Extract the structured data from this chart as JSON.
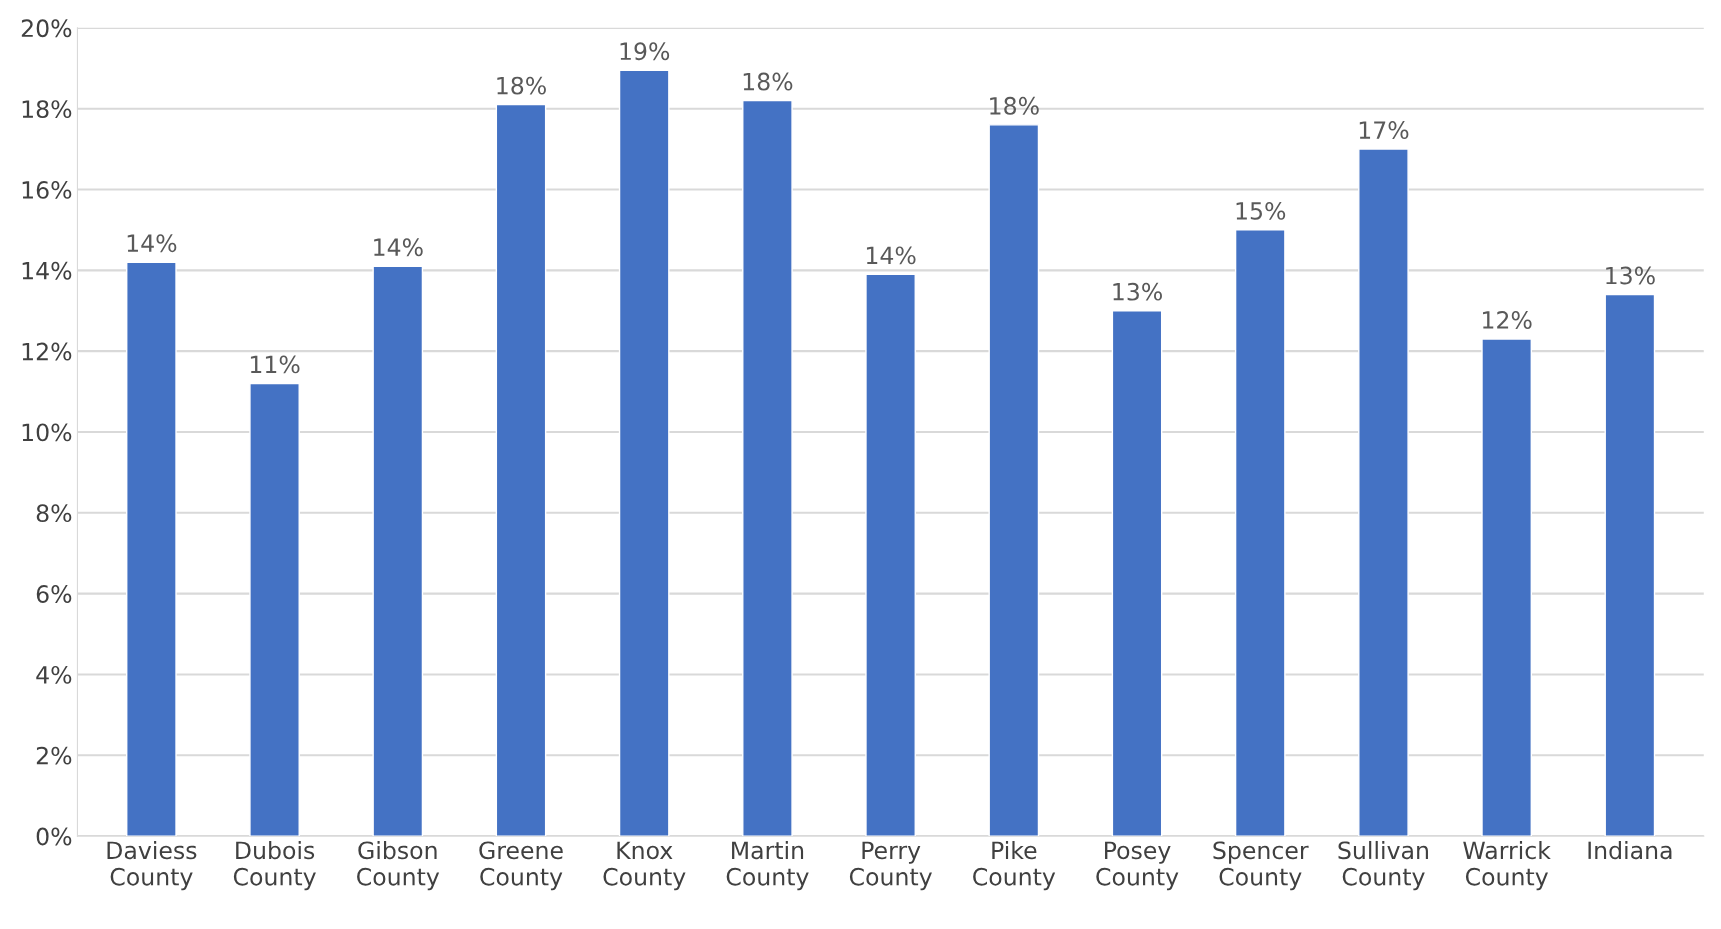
{
  "chart_data": {
    "type": "bar",
    "categories": [
      "Daviess County",
      "Dubois County",
      "Gibson County",
      "Greene County",
      "Knox County",
      "Martin County",
      "Perry County",
      "Pike County",
      "Posey County",
      "Spencer County",
      "Sullivan County",
      "Warrick County",
      "Indiana"
    ],
    "values": [
      14.2,
      11.2,
      14.1,
      18.1,
      18.95,
      18.2,
      13.9,
      17.6,
      13.0,
      15.0,
      17.0,
      12.3,
      13.4
    ],
    "value_labels": [
      "14%",
      "11%",
      "14%",
      "18%",
      "19%",
      "18%",
      "14%",
      "18%",
      "13%",
      "15%",
      "17%",
      "12%",
      "13%"
    ],
    "color": "#4472c4",
    "ylim": [
      0,
      20
    ],
    "yticks": [
      {
        "value": 0,
        "label": "0%"
      },
      {
        "value": 2,
        "label": "2%"
      },
      {
        "value": 4,
        "label": "4%"
      },
      {
        "value": 6,
        "label": "6%"
      },
      {
        "value": 8,
        "label": "8%"
      },
      {
        "value": 10,
        "label": "10%"
      },
      {
        "value": 12,
        "label": "12%"
      },
      {
        "value": 14,
        "label": "14%"
      },
      {
        "value": 16,
        "label": "16%"
      },
      {
        "value": 18,
        "label": "18%"
      },
      {
        "value": 20,
        "label": "20%"
      }
    ],
    "grid": "y"
  }
}
